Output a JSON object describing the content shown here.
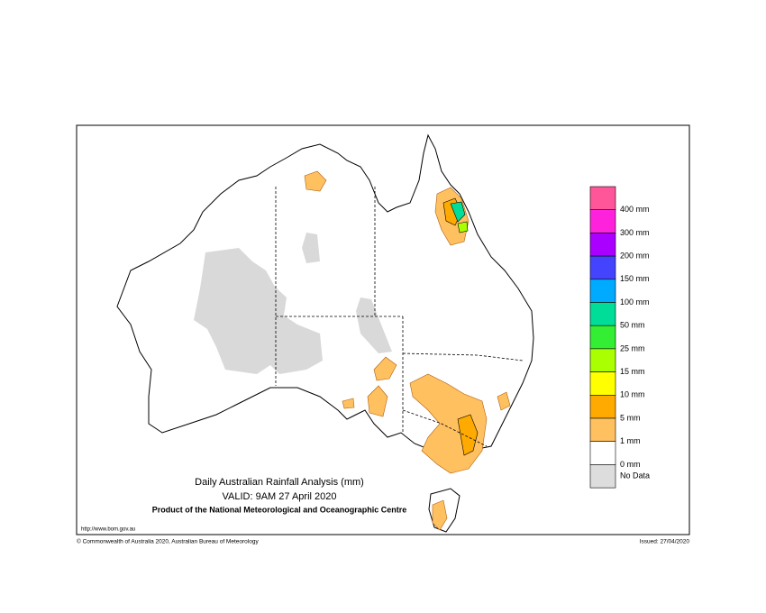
{
  "map": {
    "title": "Daily Australian Rainfall Analysis (mm)",
    "valid": "VALID: 9AM 27 April 2020",
    "product": "Product of the National Meteorological and Oceanographic Centre",
    "url": "http://www.bom.gov.au",
    "copyright": "© Commonwealth of Australia 2020, Australian Bureau of Meteorology",
    "issued": "Issued: 27/04/2020",
    "legend": {
      "colors": [
        "#ff5599",
        "#ff22dd",
        "#aa00ff",
        "#4444ff",
        "#00aaff",
        "#00dd99",
        "#33ee33",
        "#aaff00",
        "#ffff00",
        "#ffaa00",
        "#ffc060",
        "#ffffff",
        "#dddddd"
      ],
      "labels": [
        "400 mm",
        "300 mm",
        "200 mm",
        "150 mm",
        "100 mm",
        "50 mm",
        "25 mm",
        "15 mm",
        "10 mm",
        "5 mm",
        "1 mm",
        "0 mm",
        "No Data"
      ]
    }
  }
}
